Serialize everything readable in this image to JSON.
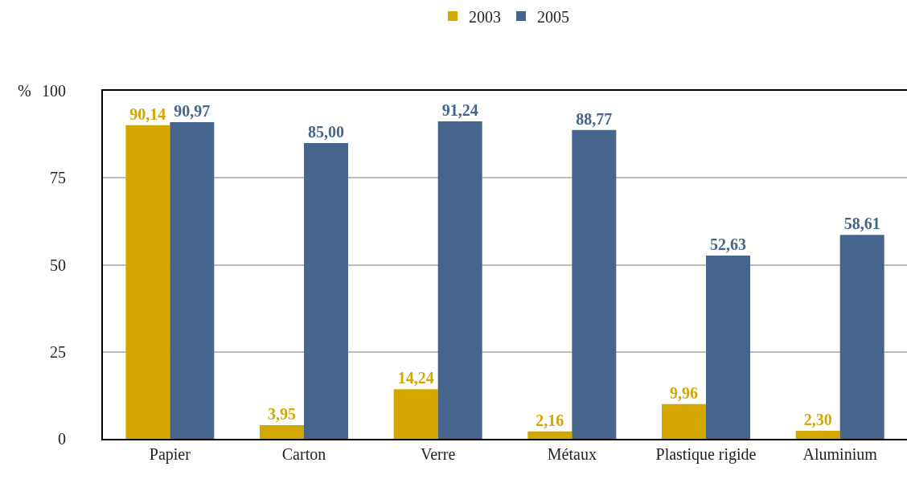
{
  "chart_data": {
    "type": "bar",
    "ylabel": "%",
    "categories": [
      "Papier",
      "Carton",
      "Verre",
      "Métaux",
      "Plastique rigide",
      "Aluminium"
    ],
    "series": [
      {
        "name": "2003",
        "color": "#d4a700",
        "values": [
          90.14,
          3.95,
          14.24,
          2.16,
          9.96,
          2.3
        ],
        "value_labels": [
          "90,14",
          "3,95",
          "14,24",
          "2,16",
          "9,96",
          "2,30"
        ]
      },
      {
        "name": "2005",
        "color": "#46658c",
        "values": [
          90.97,
          85.0,
          91.24,
          88.77,
          52.63,
          58.61
        ],
        "value_labels": [
          "90,97",
          "85,00",
          "91,24",
          "88,77",
          "52,63",
          "58,61"
        ]
      }
    ],
    "ylim": [
      0,
      100
    ],
    "yticks": [
      0,
      25,
      50,
      75,
      100
    ],
    "grid": "y",
    "legend": "top"
  }
}
